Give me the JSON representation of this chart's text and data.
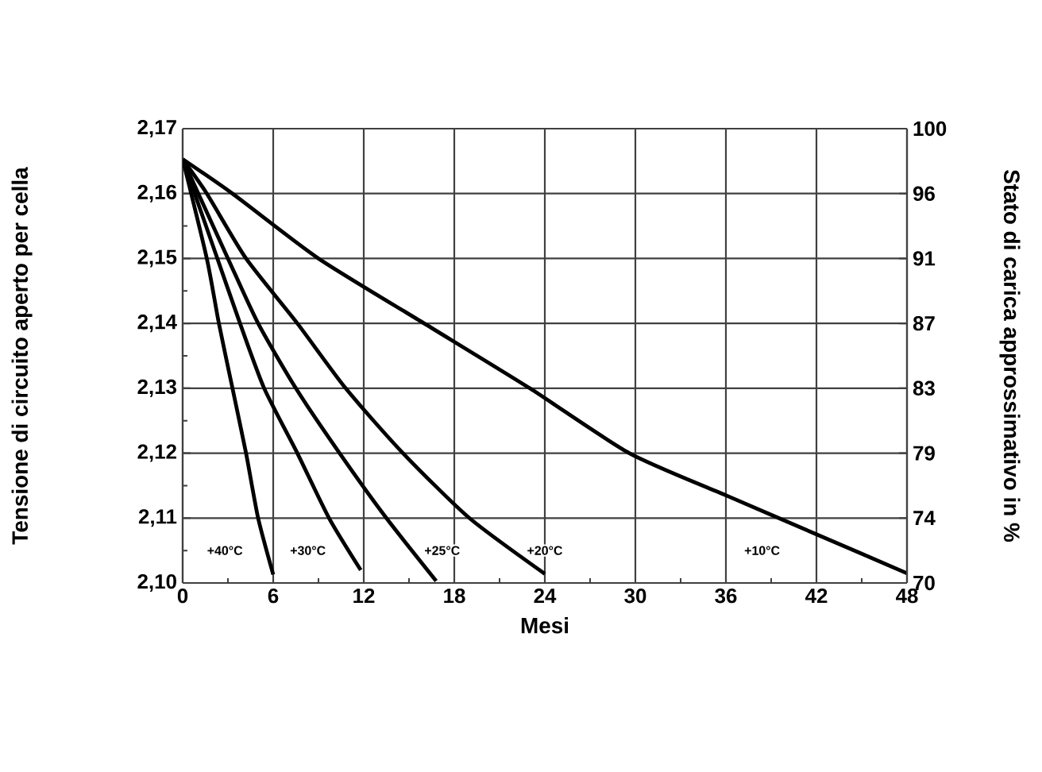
{
  "chart_data": {
    "type": "line",
    "xlabel": "Mesi",
    "ylabel": "Tensione di circuito aperto per cella",
    "y2label": "Stato di carica approssimativo in %",
    "xlim": [
      0,
      48
    ],
    "xticks": [
      0,
      6,
      12,
      18,
      24,
      30,
      36,
      42,
      48
    ],
    "ylim": [
      2.1,
      2.17
    ],
    "yticks": [
      {
        "value": 2.1,
        "label": "2,10"
      },
      {
        "value": 2.11,
        "label": "2,11"
      },
      {
        "value": 2.12,
        "label": "2,12"
      },
      {
        "value": 2.13,
        "label": "2,13"
      },
      {
        "value": 2.14,
        "label": "2,14"
      },
      {
        "value": 2.15,
        "label": "2,15"
      },
      {
        "value": 2.16,
        "label": "2,16"
      },
      {
        "value": 2.17,
        "label": "2,17"
      }
    ],
    "y2lim": [
      70,
      100
    ],
    "y2ticks": [
      70,
      {
        "value": 74.29,
        "label": "74"
      },
      {
        "value": 78.57,
        "label": "79"
      },
      {
        "value": 82.86,
        "label": "83"
      },
      {
        "value": 87.14,
        "label": "87"
      },
      {
        "value": 91.43,
        "label": "91"
      },
      {
        "value": 95.71,
        "label": "96"
      },
      100
    ],
    "grid": true,
    "line_style": "solid",
    "series": [
      {
        "color": "#000000",
        "x": [
          0,
          1.6,
          2.4,
          3.3,
          4.2,
          5.0,
          6.0
        ],
        "values": [
          2.1653,
          2.15,
          2.14,
          2.13,
          2.12,
          2.11,
          2.1013
        ]
      },
      {
        "color": "#000000",
        "x": [
          0,
          2.3,
          3.8,
          5.4,
          7.6,
          9.7,
          11.8
        ],
        "values": [
          2.1653,
          2.15,
          2.14,
          2.13,
          2.12,
          2.11,
          2.102
        ]
      },
      {
        "color": "#000000",
        "x": [
          0,
          3.0,
          5.0,
          7.5,
          10.4,
          13.5,
          16.8
        ],
        "values": [
          2.1653,
          2.15,
          2.14,
          2.13,
          2.12,
          2.11,
          2.1003
        ]
      },
      {
        "color": "#000000",
        "x": [
          0,
          1.6,
          4.2,
          7.6,
          10.8,
          14.6,
          19.0,
          24.0
        ],
        "values": [
          2.1653,
          2.16,
          2.15,
          2.14,
          2.13,
          2.12,
          2.11,
          2.1014
        ]
      },
      {
        "color": "#000000",
        "x": [
          0,
          3.3,
          9.0,
          16.0,
          23.0,
          29.6,
          36.0,
          42.0,
          48.0
        ],
        "values": [
          2.1653,
          2.16,
          2.15,
          2.14,
          2.13,
          2.12,
          2.1135,
          2.1075,
          2.1015
        ]
      }
    ],
    "annotations": [
      {
        "text": "+40°C",
        "x": 2.8,
        "y": 2.105
      },
      {
        "text": "+30°C",
        "x": 8.3,
        "y": 2.105
      },
      {
        "text": "+25°C",
        "x": 17.2,
        "y": 2.105
      },
      {
        "text": "+20°C",
        "x": 24.0,
        "y": 2.105
      },
      {
        "text": "+10°C",
        "x": 38.4,
        "y": 2.105
      }
    ]
  }
}
